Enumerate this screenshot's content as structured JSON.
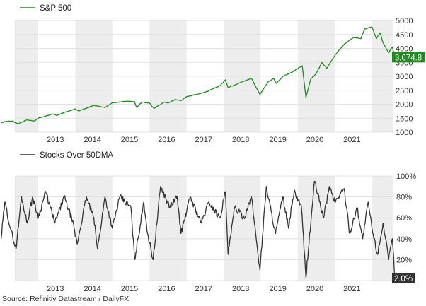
{
  "chart_data": [
    {
      "type": "line",
      "series": [
        {
          "name": "S&P 500",
          "color": "#1e8c1e"
        }
      ],
      "x_range": [
        2012.0,
        2022.62
      ],
      "ylim": [
        1000,
        5000
      ],
      "y_ticks": [
        1000,
        1500,
        2000,
        2500,
        3000,
        3500,
        4000,
        4500,
        5000
      ],
      "y_tick_labels": [
        "1000",
        "1500",
        "2000",
        "2500",
        "3000",
        "3500",
        "4000",
        "4500",
        "5000"
      ],
      "x_tick_labels": [
        "2013",
        "2014",
        "2015",
        "2016",
        "2017",
        "2018",
        "2019",
        "2020",
        "2021"
      ],
      "last_value_label": "3,674.8",
      "last_value_color": "#1e8c1e",
      "anchors": [
        [
          2012.0,
          1330
        ],
        [
          2012.1,
          1380
        ],
        [
          2012.3,
          1400
        ],
        [
          2012.45,
          1300
        ],
        [
          2012.7,
          1440
        ],
        [
          2012.9,
          1400
        ],
        [
          2013.0,
          1500
        ],
        [
          2013.4,
          1650
        ],
        [
          2013.5,
          1600
        ],
        [
          2013.8,
          1750
        ],
        [
          2014.0,
          1830
        ],
        [
          2014.1,
          1760
        ],
        [
          2014.5,
          1960
        ],
        [
          2014.8,
          1880
        ],
        [
          2015.0,
          2050
        ],
        [
          2015.4,
          2110
        ],
        [
          2015.6,
          2090
        ],
        [
          2015.65,
          1890
        ],
        [
          2015.8,
          2080
        ],
        [
          2016.0,
          2040
        ],
        [
          2016.12,
          1850
        ],
        [
          2016.4,
          2080
        ],
        [
          2016.5,
          2040
        ],
        [
          2016.7,
          2170
        ],
        [
          2016.85,
          2130
        ],
        [
          2017.0,
          2270
        ],
        [
          2017.5,
          2430
        ],
        [
          2017.9,
          2660
        ],
        [
          2018.05,
          2870
        ],
        [
          2018.12,
          2600
        ],
        [
          2018.5,
          2800
        ],
        [
          2018.75,
          2930
        ],
        [
          2018.98,
          2350
        ],
        [
          2019.2,
          2800
        ],
        [
          2019.35,
          2920
        ],
        [
          2019.42,
          2750
        ],
        [
          2019.6,
          3000
        ],
        [
          2019.85,
          3150
        ],
        [
          2020.12,
          3380
        ],
        [
          2020.22,
          2240
        ],
        [
          2020.35,
          2900
        ],
        [
          2020.5,
          3100
        ],
        [
          2020.65,
          3500
        ],
        [
          2020.78,
          3280
        ],
        [
          2021.0,
          3750
        ],
        [
          2021.25,
          4150
        ],
        [
          2021.5,
          4400
        ],
        [
          2021.7,
          4350
        ],
        [
          2021.8,
          4700
        ],
        [
          2022.0,
          4770
        ],
        [
          2022.12,
          4350
        ],
        [
          2022.22,
          4560
        ],
        [
          2022.3,
          4200
        ],
        [
          2022.45,
          3850
        ],
        [
          2022.55,
          4050
        ],
        [
          2022.62,
          3675
        ]
      ],
      "shaded_years": [
        "2012",
        "2014",
        "2016",
        "2018",
        "2020",
        "2022"
      ]
    },
    {
      "type": "line",
      "series": [
        {
          "name": "Stocks Over 50DMA",
          "color": "#333333"
        }
      ],
      "x_range": [
        2012.0,
        2022.62
      ],
      "ylim": [
        0,
        100
      ],
      "y_ticks": [
        0,
        20,
        40,
        60,
        80,
        100
      ],
      "y_tick_labels": [
        "0%",
        "20%",
        "40%",
        "60%",
        "80%",
        "100%"
      ],
      "x_tick_labels": [
        "2013",
        "2014",
        "2015",
        "2016",
        "2017",
        "2018",
        "2019",
        "2020",
        "2021"
      ],
      "last_value_label": "2.0%",
      "last_value_color": "#333333",
      "anchors": [
        [
          2012.0,
          40
        ],
        [
          2012.1,
          75
        ],
        [
          2012.25,
          50
        ],
        [
          2012.4,
          30
        ],
        [
          2012.55,
          80
        ],
        [
          2012.7,
          55
        ],
        [
          2012.85,
          80
        ],
        [
          2013.0,
          60
        ],
        [
          2013.2,
          85
        ],
        [
          2013.45,
          55
        ],
        [
          2013.7,
          80
        ],
        [
          2013.9,
          60
        ],
        [
          2014.05,
          35
        ],
        [
          2014.3,
          80
        ],
        [
          2014.5,
          60
        ],
        [
          2014.6,
          30
        ],
        [
          2014.8,
          80
        ],
        [
          2015.0,
          50
        ],
        [
          2015.2,
          80
        ],
        [
          2015.5,
          70
        ],
        [
          2015.6,
          20
        ],
        [
          2015.85,
          75
        ],
        [
          2015.95,
          45
        ],
        [
          2016.1,
          20
        ],
        [
          2016.3,
          90
        ],
        [
          2016.55,
          70
        ],
        [
          2016.75,
          80
        ],
        [
          2016.85,
          45
        ],
        [
          2017.1,
          80
        ],
        [
          2017.4,
          55
        ],
        [
          2017.6,
          75
        ],
        [
          2017.9,
          60
        ],
        [
          2018.05,
          85
        ],
        [
          2018.12,
          25
        ],
        [
          2018.3,
          70
        ],
        [
          2018.55,
          60
        ],
        [
          2018.75,
          80
        ],
        [
          2018.98,
          10
        ],
        [
          2019.15,
          90
        ],
        [
          2019.4,
          45
        ],
        [
          2019.6,
          80
        ],
        [
          2019.75,
          50
        ],
        [
          2019.9,
          85
        ],
        [
          2020.1,
          70
        ],
        [
          2020.22,
          3
        ],
        [
          2020.45,
          95
        ],
        [
          2020.7,
          60
        ],
        [
          2020.85,
          90
        ],
        [
          2021.0,
          75
        ],
        [
          2021.25,
          88
        ],
        [
          2021.4,
          45
        ],
        [
          2021.6,
          70
        ],
        [
          2021.75,
          40
        ],
        [
          2021.9,
          75
        ],
        [
          2022.0,
          50
        ],
        [
          2022.15,
          25
        ],
        [
          2022.3,
          55
        ],
        [
          2022.45,
          20
        ],
        [
          2022.55,
          40
        ],
        [
          2022.62,
          2
        ]
      ],
      "shaded_years": [
        "2012",
        "2014",
        "2016",
        "2018",
        "2020",
        "2022"
      ]
    }
  ],
  "source": "Source: Refinitiv Datastream / DailyFX"
}
